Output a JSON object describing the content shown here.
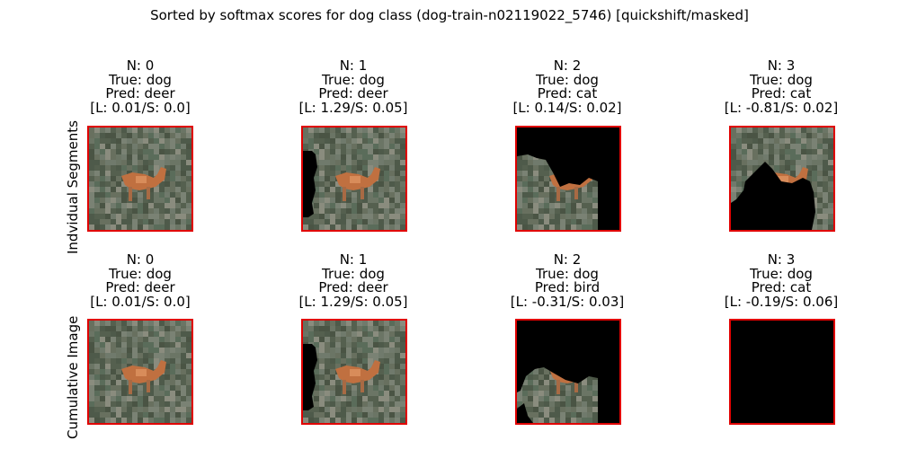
{
  "title": "Sorted by softmax scores for dog class (dog-train-n02119022_5746) [quickshift/masked]",
  "rows": [
    {
      "label": "Indvidual Segments",
      "panels": [
        {
          "n": "N: 0",
          "true": "True: dog",
          "pred": "Pred: deer",
          "scores": "[L: 0.01/S: 0.0]",
          "mask": "none"
        },
        {
          "n": "N: 1",
          "true": "True: dog",
          "pred": "Pred: deer",
          "scores": "[L: 1.29/S: 0.05]",
          "mask": "left-strip"
        },
        {
          "n": "N: 2",
          "true": "True: dog",
          "pred": "Pred: cat",
          "scores": "[L: 0.14/S: 0.02]",
          "mask": "keep-bottom-left"
        },
        {
          "n": "N: 3",
          "true": "True: dog",
          "pred": "Pred: cat",
          "scores": "[L: -0.81/S: 0.02]",
          "mask": "bottom-black"
        }
      ]
    },
    {
      "label": "Cumulative Image",
      "panels": [
        {
          "n": "N: 0",
          "true": "True: dog",
          "pred": "Pred: deer",
          "scores": "[L: 0.01/S: 0.0]",
          "mask": "none"
        },
        {
          "n": "N: 1",
          "true": "True: dog",
          "pred": "Pred: deer",
          "scores": "[L: 1.29/S: 0.05]",
          "mask": "left-strip"
        },
        {
          "n": "N: 2",
          "true": "True: dog",
          "pred": "Pred: bird",
          "scores": "[L: -0.31/S: 0.03]",
          "mask": "keep-bottom-left-small"
        },
        {
          "n": "N: 3",
          "true": "True: dog",
          "pred": "Pred: cat",
          "scores": "[L: -0.19/S: 0.06]",
          "mask": "all-black"
        }
      ]
    }
  ]
}
